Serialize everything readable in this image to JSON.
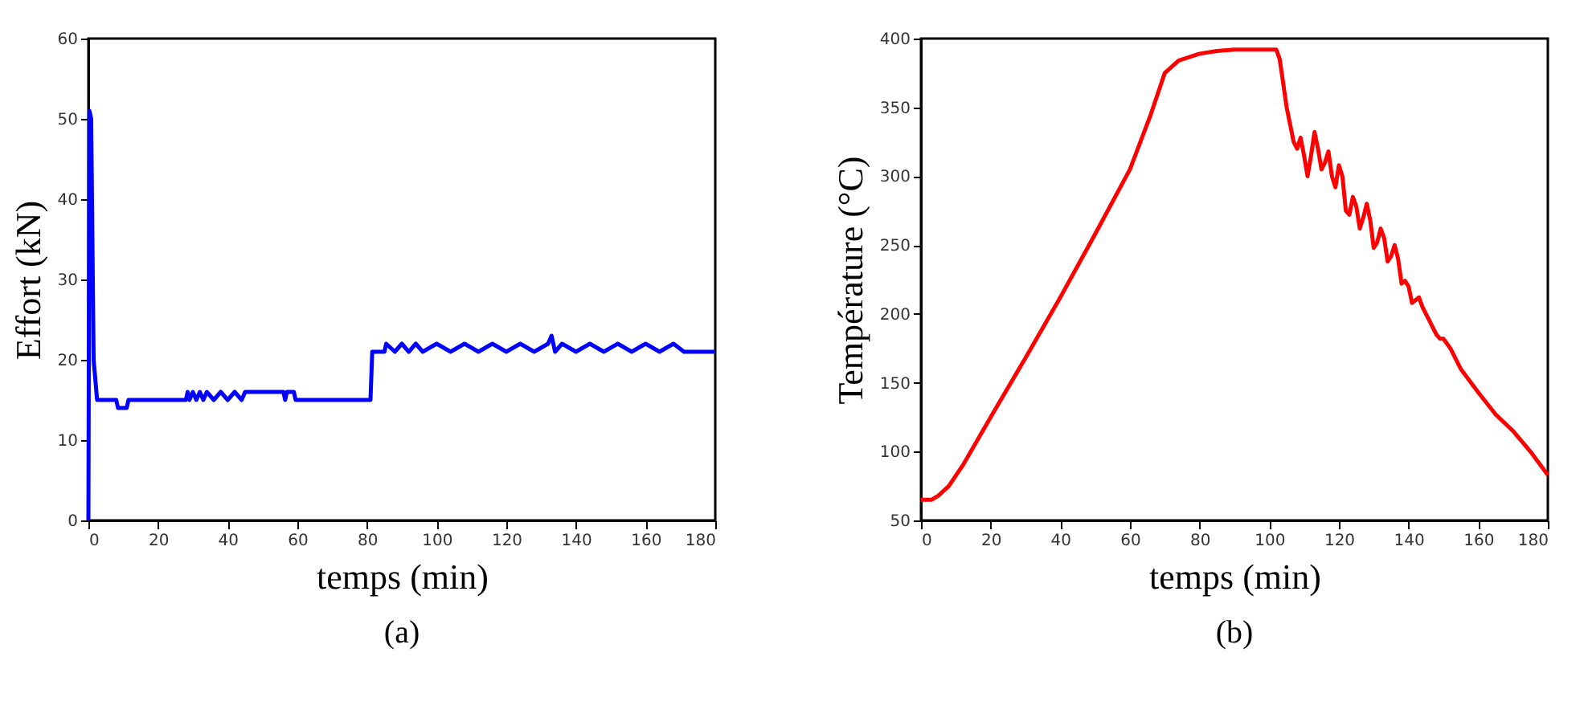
{
  "chart_data": [
    {
      "type": "line",
      "xlabel": "temps (min)",
      "ylabel": "Effort (kN)",
      "annotations": [
        "(a)"
      ],
      "xlim": [
        0,
        180
      ],
      "ylim": [
        0,
        60
      ],
      "xticks": [
        0,
        20,
        40,
        60,
        80,
        100,
        120,
        140,
        160,
        180
      ],
      "yticks": [
        0,
        10,
        20,
        30,
        40,
        50,
        60
      ],
      "grid": false,
      "marker": "none",
      "line_style": "solid",
      "series": [
        {
          "color": "#0000ff",
          "x": [
            0,
            0.3,
            0.8,
            1.5,
            2.5,
            8,
            8.5,
            11,
            11.5,
            28,
            28.5,
            29,
            30,
            31,
            32,
            33,
            34,
            36,
            38,
            40,
            42,
            44,
            45,
            56,
            56.5,
            57,
            59,
            59.5,
            81,
            81.5,
            85,
            85.5,
            88,
            90,
            92,
            94,
            96,
            100,
            104,
            108,
            112,
            116,
            120,
            124,
            128,
            132,
            133,
            134,
            136,
            140,
            144,
            148,
            152,
            156,
            160,
            164,
            168,
            171,
            172,
            180
          ],
          "values": [
            0,
            51,
            50,
            20,
            15,
            15,
            14,
            14,
            15,
            15,
            16,
            15,
            16,
            15,
            16,
            15,
            16,
            15,
            16,
            15,
            16,
            15,
            16,
            16,
            15,
            16,
            16,
            15,
            15,
            21,
            21,
            22,
            21,
            22,
            21,
            22,
            21,
            22,
            21,
            22,
            21,
            22,
            21,
            22,
            21,
            22,
            23,
            21,
            22,
            21,
            22,
            21,
            22,
            21,
            22,
            21,
            22,
            21,
            21,
            21
          ]
        }
      ]
    },
    {
      "type": "line",
      "xlabel": "temps (min)",
      "ylabel": "Température (°C)",
      "annotations": [
        "(b)"
      ],
      "xlim": [
        0,
        180
      ],
      "ylim": [
        50,
        400
      ],
      "xticks": [
        0,
        20,
        40,
        60,
        80,
        100,
        120,
        140,
        160,
        180
      ],
      "yticks": [
        50,
        100,
        150,
        200,
        250,
        300,
        350,
        400
      ],
      "grid": false,
      "marker": "none",
      "line_style": "solid",
      "series": [
        {
          "color": "#ff0000",
          "x": [
            0,
            3,
            5,
            8,
            12,
            20,
            30,
            40,
            50,
            60,
            66,
            70,
            74,
            80,
            85,
            90,
            102,
            103,
            105,
            107,
            108,
            109,
            110,
            111,
            112,
            113,
            114,
            115,
            116,
            117,
            118,
            119,
            120,
            121,
            122,
            123,
            124,
            125,
            126,
            127,
            128,
            129,
            130,
            131,
            132,
            133,
            134,
            135,
            136,
            137,
            138,
            139,
            140,
            141,
            142,
            143,
            144,
            146,
            148,
            149,
            150,
            152,
            155,
            160,
            165,
            170,
            175,
            180
          ],
          "values": [
            65,
            65,
            68,
            75,
            90,
            125,
            168,
            212,
            258,
            305,
            345,
            375,
            384,
            389,
            391,
            392,
            392,
            385,
            350,
            325,
            320,
            328,
            315,
            300,
            315,
            332,
            320,
            305,
            310,
            318,
            300,
            292,
            308,
            300,
            275,
            272,
            285,
            278,
            262,
            270,
            280,
            268,
            248,
            252,
            262,
            255,
            238,
            242,
            250,
            240,
            222,
            224,
            220,
            208,
            210,
            212,
            205,
            195,
            185,
            182,
            182,
            175,
            160,
            143,
            127,
            115,
            100,
            83
          ]
        }
      ]
    }
  ]
}
